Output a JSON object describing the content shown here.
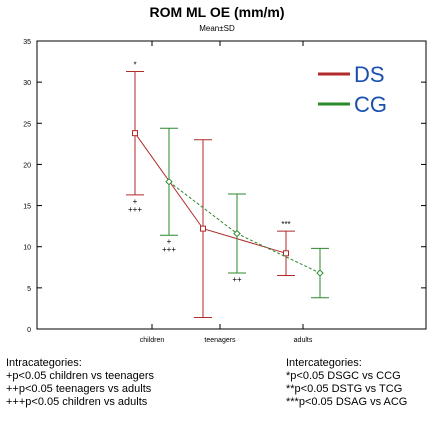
{
  "chart_data": {
    "type": "line",
    "title": "ROM ML OE (mm/m)",
    "subtitle": "Mean±SD",
    "xlabel": "",
    "ylabel": "",
    "categories": [
      "children",
      "teenagers",
      "adults"
    ],
    "ylim": [
      0,
      35
    ],
    "yticks": [
      0,
      5,
      10,
      15,
      20,
      25,
      30,
      35
    ],
    "grid": false,
    "legend_position": "top-right",
    "series": [
      {
        "name": "DS",
        "color": "#b22a2a",
        "line_style": "solid",
        "marker": "square",
        "mean": [
          23.8,
          12.2,
          9.2
        ],
        "sd": [
          7.5,
          10.8,
          2.7
        ]
      },
      {
        "name": "CG",
        "color": "#2a8a2a",
        "line_style": "dashed",
        "marker": "diamond",
        "mean": [
          17.9,
          11.6,
          6.8
        ],
        "sd": [
          6.5,
          4.8,
          3.0
        ]
      }
    ],
    "annotations": [
      {
        "text": "*",
        "category": 0,
        "value": 31.3,
        "series": 0,
        "pos": "above"
      },
      {
        "text": "+",
        "category": 0,
        "value": 16.3,
        "series": 0,
        "pos": "below"
      },
      {
        "text": "+++",
        "category": 0,
        "value": 16.3,
        "series": 0,
        "pos": "below2"
      },
      {
        "text": "+",
        "category": 0,
        "value": 11.4,
        "series": 1,
        "pos": "below"
      },
      {
        "text": "+++",
        "category": 0,
        "value": 11.4,
        "series": 1,
        "pos": "below2"
      },
      {
        "text": "++",
        "category": 1,
        "value": 6.8,
        "series": 1,
        "pos": "below"
      },
      {
        "text": "***",
        "category": 2,
        "value": 11.9,
        "series": 0,
        "pos": "above"
      }
    ]
  },
  "notes": {
    "left": {
      "heading": "Intracategories:",
      "lines": [
        "+p<0.05 children vs teenagers",
        "++p<0.05 teenagers vs adults",
        "+++p<0.05 children vs adults"
      ]
    },
    "right": {
      "heading": "Intercategories:",
      "lines": [
        "*p<0.05 DSGC vs CCG",
        "**p<0.05 DSTG vs TCG",
        "***p<0.05 DSAG vs ACG"
      ]
    }
  }
}
